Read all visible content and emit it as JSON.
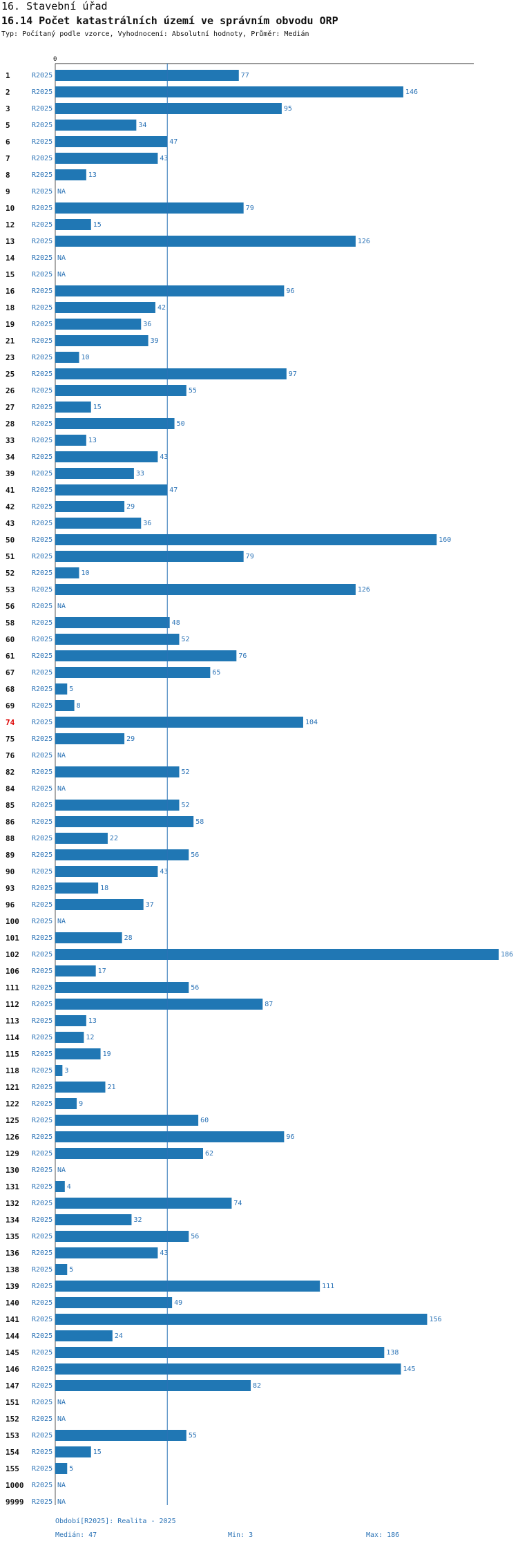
{
  "header": {
    "section": "16. Stavební úřad",
    "title": "16.14 Počet katastrálních území ve správním obvodu ORP",
    "subtitle": "Typ: Počítaný podle vzorce, Vyhodnocení: Absolutní hodnoty, Průměr: Medián"
  },
  "colors": {
    "bar": "#2077b4",
    "label": "#2b73b6",
    "highlight": "#dd0000",
    "text": "#111111"
  },
  "chart_data": {
    "type": "bar",
    "orientation": "horizontal",
    "title": "16.14 Počet katastrálních území ve správním obvodu ORP",
    "axis_zero_label": "0",
    "xlim": [
      0,
      186
    ],
    "median": 47,
    "highlight_category": "74",
    "series_label": "R2025",
    "na_label": "NA",
    "categories": [
      "1",
      "2",
      "3",
      "5",
      "6",
      "7",
      "8",
      "9",
      "10",
      "12",
      "13",
      "14",
      "15",
      "16",
      "18",
      "19",
      "21",
      "23",
      "25",
      "26",
      "27",
      "28",
      "33",
      "34",
      "39",
      "41",
      "42",
      "43",
      "50",
      "51",
      "52",
      "53",
      "56",
      "58",
      "60",
      "61",
      "67",
      "68",
      "69",
      "74",
      "75",
      "76",
      "82",
      "84",
      "85",
      "86",
      "88",
      "89",
      "90",
      "93",
      "96",
      "100",
      "101",
      "102",
      "106",
      "111",
      "112",
      "113",
      "114",
      "115",
      "118",
      "121",
      "122",
      "125",
      "126",
      "129",
      "130",
      "131",
      "132",
      "134",
      "135",
      "136",
      "138",
      "139",
      "140",
      "141",
      "144",
      "145",
      "146",
      "147",
      "151",
      "152",
      "153",
      "154",
      "155",
      "1000",
      "9999"
    ],
    "values": [
      77,
      146,
      95,
      34,
      47,
      43,
      13,
      null,
      79,
      15,
      126,
      null,
      null,
      96,
      42,
      36,
      39,
      10,
      97,
      55,
      15,
      50,
      13,
      43,
      33,
      47,
      29,
      36,
      160,
      79,
      10,
      126,
      null,
      48,
      52,
      76,
      65,
      5,
      8,
      104,
      29,
      null,
      52,
      null,
      52,
      58,
      22,
      56,
      43,
      18,
      37,
      null,
      28,
      186,
      17,
      56,
      87,
      13,
      12,
      19,
      3,
      21,
      9,
      60,
      96,
      62,
      null,
      4,
      74,
      32,
      56,
      43,
      5,
      111,
      49,
      156,
      24,
      138,
      145,
      82,
      null,
      null,
      55,
      15,
      5,
      null,
      null
    ]
  },
  "footer": {
    "period": "Období[R2025]: Realita - 2025",
    "median": "Medián: 47",
    "min": "Min: 3",
    "max": "Max: 186"
  }
}
